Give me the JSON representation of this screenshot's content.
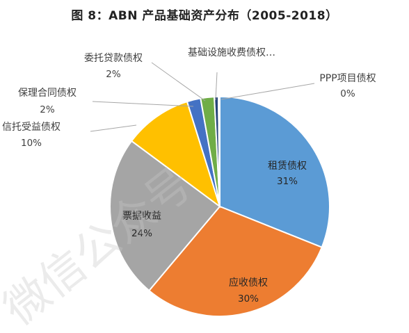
{
  "chart_data": {
    "type": "pie",
    "title": "图 8：ABN 产品基础资产分布（2005-2018）",
    "slices": [
      {
        "label": "租赁债权",
        "value": 31,
        "pct_label": "31%",
        "color": "#5B9BD5"
      },
      {
        "label": "应收债权",
        "value": 30,
        "pct_label": "30%",
        "color": "#ED7D31"
      },
      {
        "label": "票据收益",
        "value": 24,
        "pct_label": "24%",
        "color": "#A5A5A5"
      },
      {
        "label": "信托受益债权",
        "value": 10,
        "pct_label": "10%",
        "color": "#FFC000"
      },
      {
        "label": "保理合同债权",
        "value": 2,
        "pct_label": "2%",
        "color": "#4472C4"
      },
      {
        "label": "委托贷款债权",
        "value": 2,
        "pct_label": "2%",
        "color": "#70AD47"
      },
      {
        "label": "基础设施收费债权…",
        "value": 0.6,
        "pct_label": "",
        "color": "#264478"
      },
      {
        "label": "PPP项目债权",
        "value": 0.2,
        "pct_label": "0%",
        "color": "#9E480E"
      }
    ],
    "legend": "none"
  },
  "watermark": "微信公众号"
}
